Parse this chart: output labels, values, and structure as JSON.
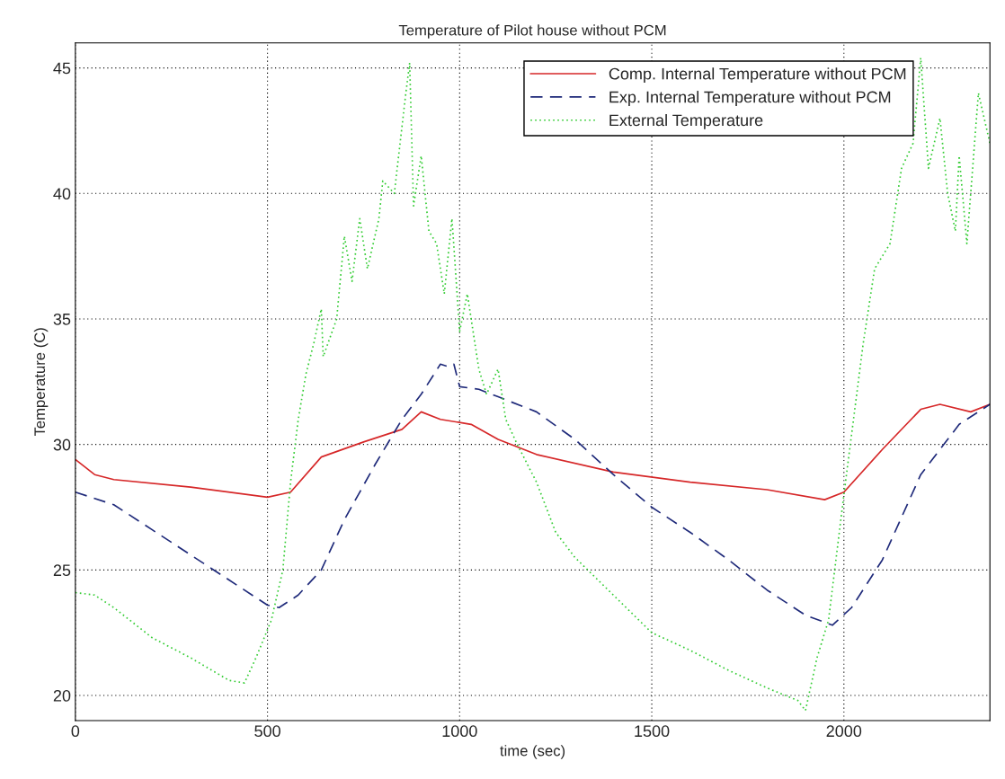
{
  "chart_data": {
    "type": "line",
    "title": "Temperature of Pilot house without PCM",
    "xlabel": "time (sec)",
    "ylabel": "Temperature (C)",
    "xlim": [
      0,
      2380
    ],
    "xticks": [
      0,
      500,
      1000,
      1500,
      2000
    ],
    "ylim": [
      19,
      46
    ],
    "yticks": [
      20,
      25,
      30,
      35,
      40,
      45
    ],
    "grid": true,
    "legend": "top right",
    "series": [
      {
        "name": "Comp. Internal Temperature without PCM",
        "color": "#d62728",
        "line_style": "solid",
        "x": [
          0,
          50,
          100,
          300,
          500,
          560,
          640,
          750,
          850,
          900,
          950,
          1030,
          1100,
          1200,
          1400,
          1600,
          1800,
          1950,
          2000,
          2100,
          2200,
          2250,
          2330,
          2380
        ],
        "values": [
          29.4,
          28.8,
          28.6,
          28.3,
          27.9,
          28.1,
          29.5,
          30.1,
          30.6,
          31.3,
          31.0,
          30.8,
          30.2,
          29.6,
          28.9,
          28.5,
          28.2,
          27.8,
          28.1,
          29.8,
          31.4,
          31.6,
          31.3,
          31.6
        ]
      },
      {
        "name": "Exp. Internal Temperature without PCM",
        "color": "#1f2a7a",
        "line_style": "dashed",
        "x": [
          0,
          100,
          200,
          300,
          400,
          500,
          530,
          580,
          640,
          700,
          780,
          850,
          900,
          950,
          970,
          985,
          1000,
          1050,
          1100,
          1200,
          1300,
          1400,
          1500,
          1600,
          1700,
          1800,
          1900,
          1970,
          2020,
          2100,
          2200,
          2300,
          2380
        ],
        "values": [
          28.1,
          27.6,
          26.6,
          25.6,
          24.6,
          23.6,
          23.5,
          24.0,
          25.0,
          27.0,
          29.2,
          31.0,
          32.0,
          33.2,
          33.1,
          33.2,
          32.3,
          32.2,
          31.9,
          31.3,
          30.2,
          28.8,
          27.5,
          26.5,
          25.4,
          24.2,
          23.2,
          22.8,
          23.5,
          25.4,
          28.8,
          30.8,
          31.6
        ]
      },
      {
        "name": "External Temperature",
        "color": "#33cc33",
        "line_style": "dotted",
        "x": [
          0,
          50,
          100,
          200,
          300,
          400,
          440,
          470,
          510,
          540,
          560,
          580,
          600,
          620,
          640,
          645,
          680,
          700,
          720,
          740,
          760,
          790,
          800,
          830,
          860,
          870,
          880,
          900,
          920,
          940,
          960,
          980,
          1000,
          1020,
          1050,
          1070,
          1100,
          1120,
          1150,
          1200,
          1250,
          1300,
          1400,
          1500,
          1600,
          1700,
          1800,
          1880,
          1900,
          1930,
          1960,
          2000,
          2050,
          2080,
          2120,
          2150,
          2180,
          2200,
          2220,
          2250,
          2270,
          2290,
          2300,
          2320,
          2350,
          2380
        ],
        "values": [
          24.1,
          24.0,
          23.5,
          22.3,
          21.5,
          20.6,
          20.5,
          21.5,
          23.0,
          25.0,
          28.5,
          31.0,
          32.8,
          34.0,
          35.4,
          33.5,
          35.0,
          38.3,
          36.5,
          39.0,
          37.0,
          39.0,
          40.5,
          40.0,
          44.0,
          45.2,
          39.5,
          41.5,
          38.5,
          38.0,
          36.0,
          39.0,
          34.5,
          36.0,
          33.0,
          32.0,
          33.0,
          31.0,
          30.0,
          28.5,
          26.5,
          25.5,
          24.0,
          22.5,
          21.8,
          21.0,
          20.3,
          19.8,
          19.4,
          21.5,
          23.0,
          28.0,
          34.0,
          37.0,
          38.0,
          41.0,
          42.0,
          45.4,
          41.0,
          43.0,
          40.0,
          38.5,
          41.5,
          38.0,
          44.0,
          42.0
        ]
      }
    ]
  }
}
